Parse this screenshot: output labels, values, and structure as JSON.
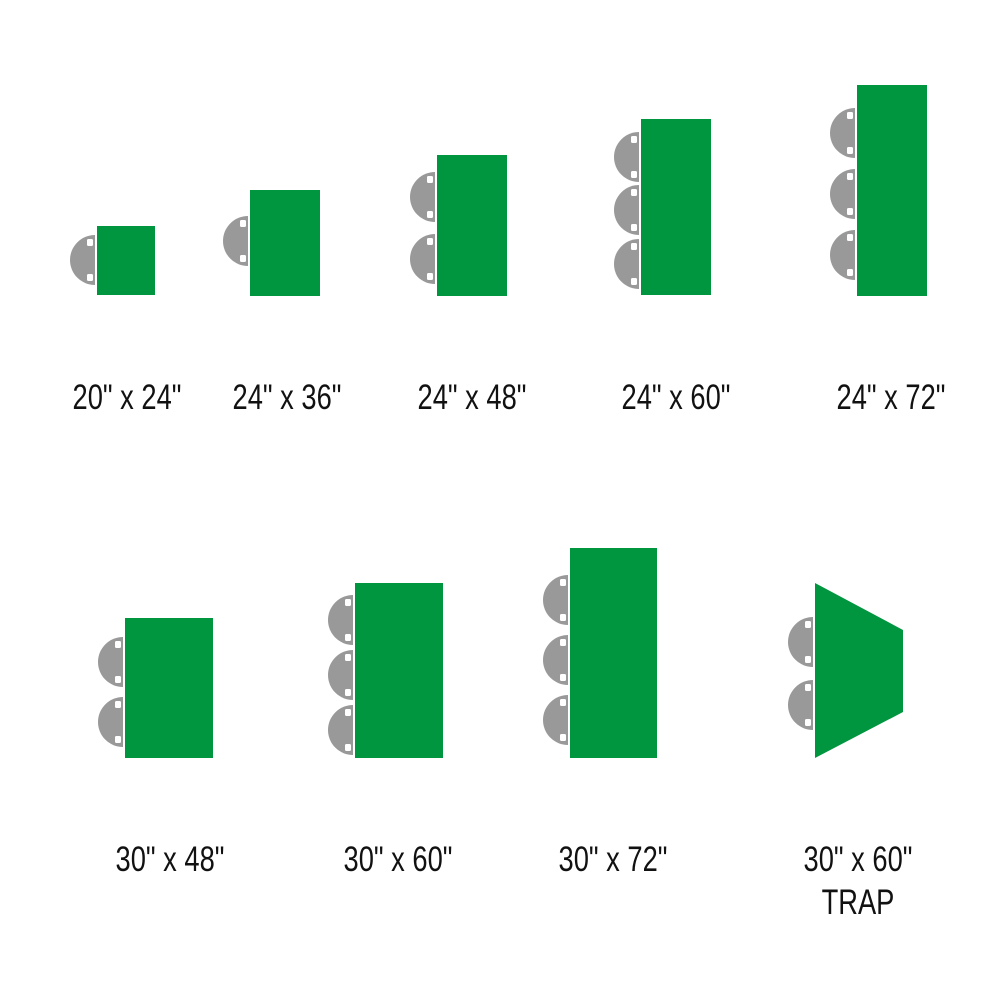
{
  "colors": {
    "table": "#009640",
    "chair": "#999999",
    "label": "#111111"
  },
  "tables": [
    {
      "label": "20\" x 24\"",
      "chairs": 1
    },
    {
      "label": "24\" x 36\"",
      "chairs": 1
    },
    {
      "label": "24\" x 48\"",
      "chairs": 2
    },
    {
      "label": "24\" x 60\"",
      "chairs": 3
    },
    {
      "label": "24\" x 72\"",
      "chairs": 3
    },
    {
      "label": "30\" x 48\"",
      "chairs": 2
    },
    {
      "label": "30\" x 60\"",
      "chairs": 3
    },
    {
      "label": "30\" x 72\"",
      "chairs": 3
    },
    {
      "label": "30\" x 60\"",
      "sublabel": "TRAP",
      "chairs": 2,
      "shape": "trapezoid"
    }
  ]
}
